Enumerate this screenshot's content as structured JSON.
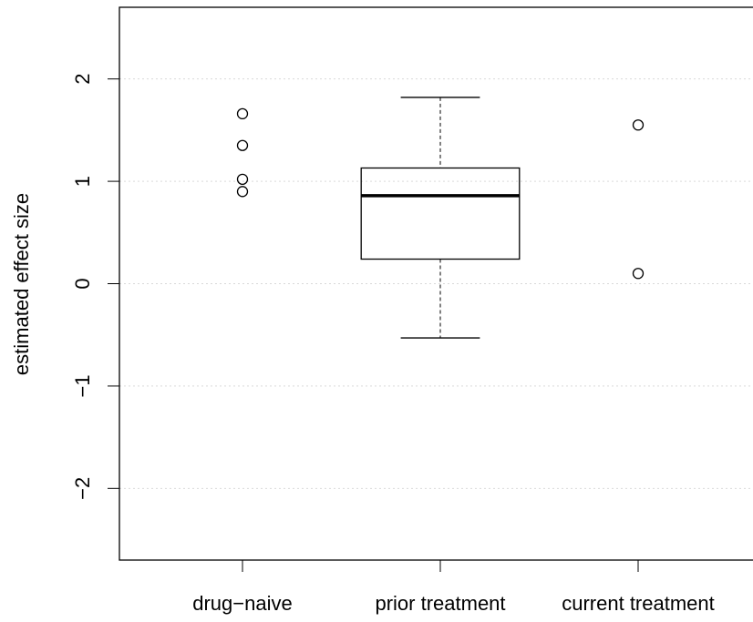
{
  "chart_data": {
    "type": "boxplot",
    "y_label": "estimated effect size",
    "categories": [
      "drug−naive",
      "prior treatment",
      "current treatment"
    ],
    "groups": [
      {
        "points": [
          1.66,
          1.35,
          1.02,
          0.9
        ]
      },
      {
        "box": {
          "whisker_low": -0.53,
          "q1": 0.24,
          "median": 0.86,
          "q3": 1.13,
          "whisker_high": 1.82
        }
      },
      {
        "points": [
          1.55,
          0.1
        ]
      }
    ],
    "ylim": [
      -2.7,
      2.7
    ],
    "yticks": [
      {
        "value": -2,
        "label": "−2"
      },
      {
        "value": -1,
        "label": "−1"
      },
      0,
      1,
      2
    ],
    "grid": true,
    "color": "#000000"
  }
}
